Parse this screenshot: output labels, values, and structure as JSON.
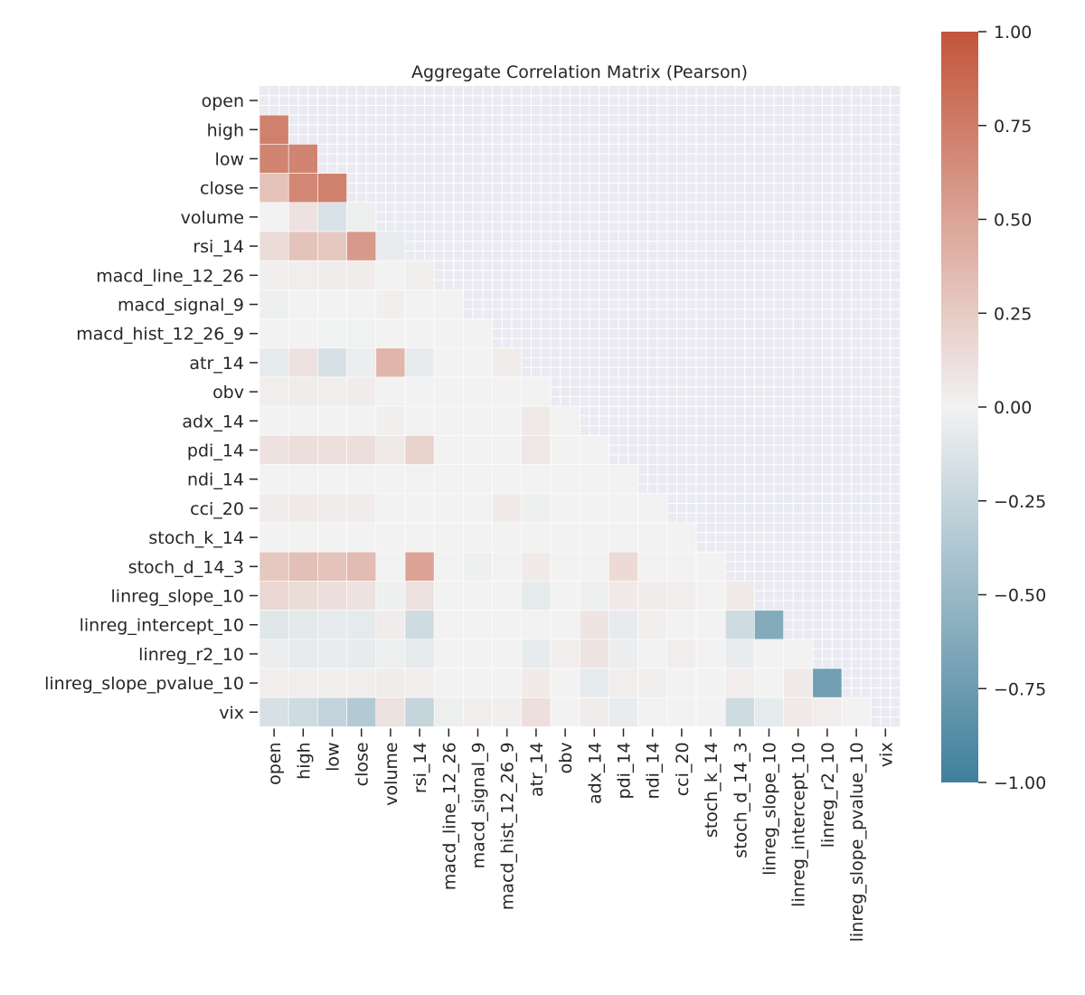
{
  "chart_data": {
    "type": "heatmap",
    "title": "Aggregate Correlation Matrix (Pearson)",
    "xlabel": "",
    "ylabel": "",
    "mask": "upper-triangle-including-diagonal",
    "grid": true,
    "colorbar": {
      "location": "right",
      "min": -1.0,
      "max": 1.0,
      "ticks": [
        1.0,
        0.75,
        0.5,
        0.25,
        0.0,
        -0.25,
        -0.5,
        -0.75,
        -1.0
      ],
      "tick_labels": [
        "1.00",
        "0.75",
        "0.50",
        "0.25",
        "0.00",
        "−0.25",
        "−0.50",
        "−0.75",
        "−1.00"
      ]
    },
    "colors": {
      "negative": "#3f7f9b",
      "neutral": "#f2f2f2",
      "positive": "#c3553a",
      "masked_background": "#eaeaf2",
      "cell_border": "#ffffff"
    },
    "labels": [
      "open",
      "high",
      "low",
      "close",
      "volume",
      "rsi_14",
      "macd_line_12_26",
      "macd_signal_9",
      "macd_hist_12_26_9",
      "atr_14",
      "obv",
      "adx_14",
      "pdi_14",
      "ndi_14",
      "cci_20",
      "stoch_k_14",
      "stoch_d_14_3",
      "linreg_slope_10",
      "linreg_intercept_10",
      "linreg_r2_10",
      "linreg_slope_pvalue_10",
      "vix"
    ],
    "matrix": [
      [
        1.0,
        0.72,
        0.7,
        0.3,
        0.0,
        0.14,
        0.02,
        -0.02,
        0.0,
        -0.07,
        0.03,
        0.0,
        0.1,
        0.0,
        0.04,
        0.0,
        0.27,
        0.17,
        -0.1,
        -0.04,
        0.03,
        -0.15
      ],
      [
        0.72,
        1.0,
        0.7,
        0.68,
        0.1,
        0.3,
        0.03,
        0.0,
        0.0,
        0.1,
        0.04,
        0.0,
        0.13,
        0.0,
        0.05,
        0.0,
        0.32,
        0.14,
        -0.08,
        -0.06,
        0.03,
        -0.2
      ],
      [
        0.7,
        0.7,
        1.0,
        0.72,
        -0.14,
        0.27,
        0.04,
        0.0,
        -0.01,
        -0.15,
        0.03,
        0.0,
        0.12,
        0.0,
        0.04,
        0.0,
        0.3,
        0.13,
        -0.06,
        -0.05,
        0.02,
        -0.27
      ],
      [
        0.3,
        0.68,
        0.72,
        1.0,
        -0.03,
        0.57,
        0.04,
        0.0,
        -0.01,
        -0.04,
        0.04,
        0.0,
        0.13,
        0.0,
        0.04,
        0.0,
        0.35,
        0.1,
        -0.07,
        -0.06,
        0.03,
        -0.35
      ],
      [
        0.0,
        0.1,
        -0.14,
        -0.03,
        1.0,
        -0.05,
        0.0,
        0.02,
        0.0,
        0.38,
        0.0,
        0.02,
        0.06,
        0.0,
        0.0,
        0.0,
        0.0,
        -0.02,
        0.04,
        -0.03,
        0.04,
        0.1
      ],
      [
        0.14,
        0.3,
        0.27,
        0.57,
        -0.05,
        1.0,
        0.02,
        0.0,
        0.0,
        -0.06,
        0.0,
        0.0,
        0.2,
        0.0,
        0.0,
        0.0,
        0.5,
        0.1,
        -0.2,
        -0.07,
        0.03,
        -0.25
      ],
      [
        0.02,
        0.03,
        0.04,
        0.04,
        0.0,
        0.02,
        1.0,
        0.0,
        0.0,
        0.0,
        0.0,
        0.0,
        0.0,
        0.0,
        0.0,
        0.0,
        0.0,
        0.0,
        0.0,
        0.0,
        0.0,
        -0.03
      ],
      [
        -0.02,
        0.0,
        0.0,
        0.0,
        0.02,
        0.0,
        0.0,
        1.0,
        0.0,
        0.0,
        0.0,
        0.0,
        0.0,
        0.0,
        0.0,
        0.0,
        -0.02,
        0.0,
        0.0,
        0.0,
        0.0,
        0.03
      ],
      [
        0.0,
        0.0,
        -0.01,
        -0.01,
        0.0,
        0.0,
        0.0,
        0.0,
        1.0,
        0.04,
        0.0,
        0.0,
        0.0,
        0.0,
        0.05,
        0.0,
        0.0,
        0.0,
        0.0,
        0.0,
        0.0,
        0.02
      ],
      [
        -0.07,
        0.1,
        -0.15,
        -0.04,
        0.38,
        -0.06,
        0.0,
        0.0,
        0.04,
        1.0,
        0.0,
        0.06,
        0.07,
        0.0,
        -0.02,
        0.0,
        0.05,
        -0.07,
        0.0,
        -0.06,
        0.05,
        0.12
      ],
      [
        0.03,
        0.04,
        0.03,
        0.04,
        0.0,
        0.0,
        0.0,
        0.0,
        0.0,
        0.0,
        1.0,
        0.0,
        0.0,
        0.0,
        0.0,
        0.0,
        0.0,
        0.0,
        0.0,
        0.03,
        0.0,
        0.0
      ],
      [
        0.0,
        0.0,
        0.0,
        0.0,
        0.02,
        0.0,
        0.0,
        0.0,
        0.0,
        0.06,
        0.0,
        1.0,
        0.0,
        0.0,
        0.0,
        0.0,
        0.0,
        -0.03,
        0.08,
        0.08,
        -0.07,
        0.04
      ],
      [
        0.1,
        0.13,
        0.12,
        0.13,
        0.06,
        0.2,
        0.0,
        0.0,
        0.0,
        0.07,
        0.0,
        0.0,
        1.0,
        0.0,
        0.0,
        0.0,
        0.15,
        0.05,
        -0.06,
        -0.04,
        0.03,
        -0.05
      ],
      [
        0.0,
        0.0,
        0.0,
        0.0,
        0.0,
        0.0,
        0.0,
        0.0,
        0.0,
        0.0,
        0.0,
        0.0,
        0.0,
        1.0,
        0.0,
        0.0,
        0.0,
        0.04,
        0.02,
        0.0,
        0.02,
        0.0
      ],
      [
        0.04,
        0.05,
        0.04,
        0.04,
        0.0,
        0.0,
        0.0,
        0.0,
        0.05,
        -0.02,
        0.0,
        0.0,
        0.0,
        0.0,
        1.0,
        0.0,
        0.0,
        0.03,
        0.0,
        0.03,
        0.0,
        0.0
      ],
      [
        0.0,
        0.0,
        0.0,
        0.0,
        0.0,
        0.0,
        0.0,
        0.0,
        0.0,
        0.0,
        0.0,
        0.0,
        0.0,
        0.0,
        0.0,
        1.0,
        0.0,
        0.0,
        0.0,
        0.0,
        0.0,
        0.0
      ],
      [
        0.27,
        0.32,
        0.3,
        0.35,
        0.0,
        0.5,
        0.0,
        -0.02,
        0.0,
        0.05,
        0.0,
        0.0,
        0.15,
        0.0,
        0.0,
        0.0,
        1.0,
        0.05,
        -0.2,
        -0.05,
        0.03,
        -0.2
      ],
      [
        0.17,
        0.14,
        0.13,
        0.1,
        -0.02,
        0.1,
        0.0,
        0.0,
        0.0,
        -0.07,
        0.0,
        -0.03,
        0.05,
        0.04,
        0.03,
        0.0,
        0.05,
        1.0,
        -0.62,
        0.0,
        0.0,
        -0.07
      ],
      [
        -0.1,
        -0.08,
        -0.06,
        -0.07,
        0.04,
        -0.2,
        0.0,
        0.0,
        0.0,
        0.0,
        0.0,
        0.08,
        -0.06,
        0.02,
        0.0,
        0.0,
        -0.2,
        -0.62,
        1.0,
        0.0,
        0.05,
        0.06
      ],
      [
        -0.04,
        -0.06,
        -0.05,
        -0.06,
        -0.03,
        -0.07,
        0.0,
        0.0,
        0.0,
        -0.06,
        0.03,
        0.08,
        -0.04,
        0.0,
        0.03,
        0.0,
        -0.05,
        0.0,
        0.0,
        1.0,
        -0.72,
        0.03
      ],
      [
        0.03,
        0.03,
        0.02,
        0.03,
        0.04,
        0.03,
        0.0,
        0.0,
        0.0,
        0.05,
        0.0,
        -0.07,
        0.03,
        0.02,
        0.0,
        0.0,
        0.03,
        0.0,
        0.05,
        -0.72,
        1.0,
        0.0
      ],
      [
        -0.15,
        -0.2,
        -0.27,
        -0.35,
        0.1,
        -0.25,
        -0.03,
        0.03,
        0.02,
        0.12,
        0.0,
        0.04,
        -0.05,
        0.0,
        0.0,
        0.0,
        -0.2,
        -0.07,
        0.06,
        0.03,
        0.0,
        1.0
      ]
    ]
  }
}
